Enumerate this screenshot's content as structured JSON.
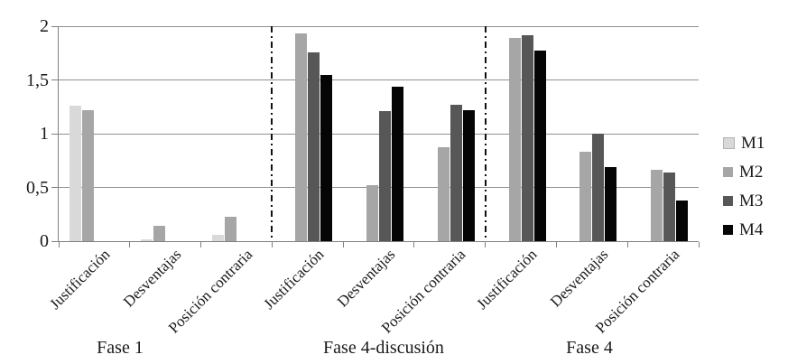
{
  "chart_data": {
    "type": "bar",
    "title": "",
    "xlabel": "",
    "ylabel": "",
    "ylim": [
      0,
      2
    ],
    "grid": true,
    "yticks": [
      {
        "value": 0,
        "label": "0"
      },
      {
        "value": 0.5,
        "label": "0,5"
      },
      {
        "value": 1,
        "label": "1"
      },
      {
        "value": 1.5,
        "label": "1,5"
      },
      {
        "value": 2,
        "label": "2"
      }
    ],
    "groups": [
      {
        "label": "Fase 1",
        "categories": [
          "Justificación",
          "Desventajas",
          "Posición contraria"
        ]
      },
      {
        "label": "Fase 4-discusión",
        "categories": [
          "Justificación",
          "Desventajas",
          "Posición contraria"
        ]
      },
      {
        "label": "Fase 4",
        "categories": [
          "Justificación",
          "Desventajas",
          "Posición contraria"
        ]
      }
    ],
    "series": [
      {
        "name": "M1",
        "color": "#d9d9d9",
        "values": [
          1.26,
          0.02,
          0.06,
          0,
          0,
          0,
          0,
          0,
          0
        ]
      },
      {
        "name": "M2",
        "color": "#a6a6a6",
        "values": [
          1.22,
          0.14,
          0.23,
          1.93,
          0.52,
          0.87,
          1.89,
          0.83,
          0.66
        ]
      },
      {
        "name": "M3",
        "color": "#575757",
        "values": [
          0,
          0,
          0,
          1.76,
          1.21,
          1.27,
          1.92,
          1.0,
          0.64
        ]
      },
      {
        "name": "M4",
        "color": "#050505",
        "values": [
          0,
          0,
          0,
          1.55,
          1.44,
          1.22,
          1.77,
          0.69,
          0.38
        ]
      }
    ],
    "legend": {
      "position": "right",
      "entries": [
        "M1",
        "M2",
        "M3",
        "M4"
      ]
    },
    "separators_between_groups": true,
    "colors": {
      "gridline": "#909090",
      "axis": "#808080",
      "separator": "#111111"
    }
  }
}
